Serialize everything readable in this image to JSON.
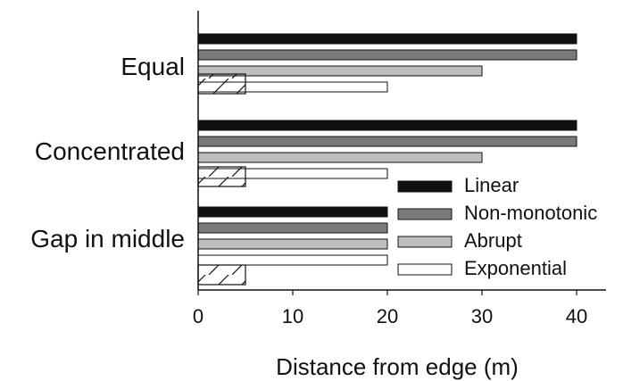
{
  "chart_data": {
    "type": "bar",
    "orientation": "horizontal",
    "categories": [
      "Equal",
      "Concentrated",
      "Gap in middle"
    ],
    "series": [
      {
        "name": "Linear",
        "values": [
          40,
          40,
          20
        ],
        "color": "#111111"
      },
      {
        "name": "Non-monotonic",
        "values": [
          40,
          40,
          20
        ],
        "color": "#7a7a7a"
      },
      {
        "name": "Abrupt",
        "values": [
          30,
          30,
          20
        ],
        "color": "#bdbdbd"
      },
      {
        "name": "Exponential",
        "values": [
          20,
          20,
          20
        ],
        "color": "#ffffff"
      }
    ],
    "overlay": {
      "description": "",
      "values": [
        5,
        5,
        5
      ],
      "pattern": "diagonal-hatch"
    },
    "xlabel": "Distance from edge (m)",
    "ylabel": "",
    "xlim": [
      0,
      43
    ],
    "xticks": [
      0,
      10,
      20,
      30,
      40
    ],
    "grid": false,
    "legend_position": "bottom-right"
  }
}
